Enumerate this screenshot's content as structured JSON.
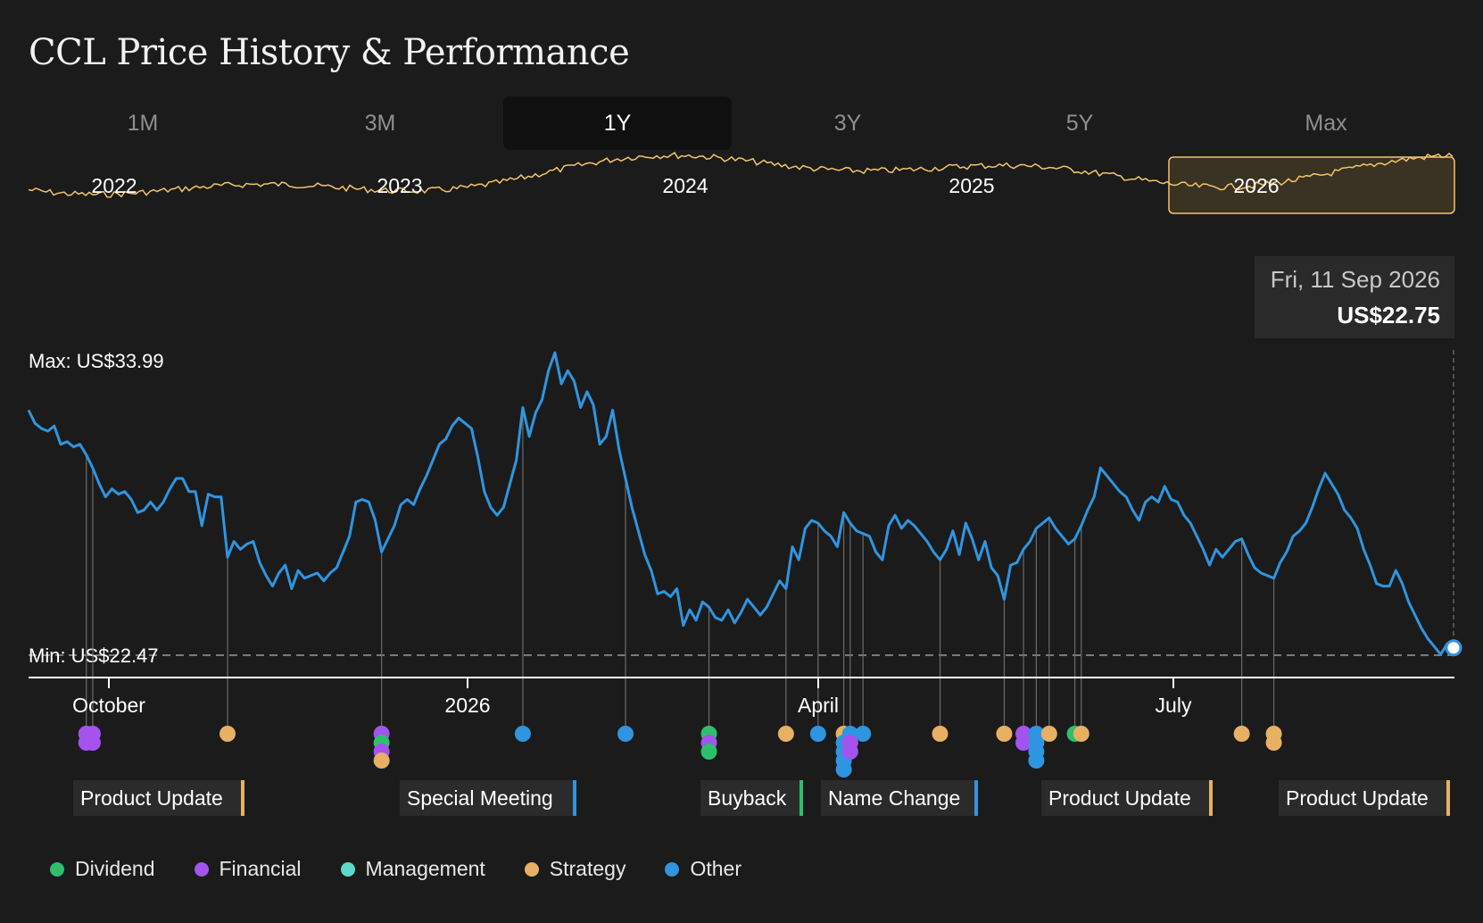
{
  "page": {
    "title": "CCL Price History & Performance"
  },
  "tabs": [
    {
      "label": "1M",
      "active": false
    },
    {
      "label": "3M",
      "active": false
    },
    {
      "label": "1Y",
      "active": true
    },
    {
      "label": "3Y",
      "active": false
    },
    {
      "label": "5Y",
      "active": false
    },
    {
      "label": "Max",
      "active": false
    }
  ],
  "colors": {
    "price_line": "#2f95e0",
    "overview_line": "#f3c56a",
    "dividend": "#2ebf6e",
    "financial": "#a553ee",
    "management": "#5fd8c7",
    "strategy": "#e7b063",
    "other": "#2f95e0"
  },
  "tooltip": {
    "date": "Fri, 11 Sep 2026",
    "price": "US$22.75"
  },
  "chart_data": [
    {
      "type": "line",
      "name": "overview",
      "x_labels": [
        "2022",
        "2023",
        "2024",
        "2025",
        "2026"
      ],
      "selected_range": "2026"
    },
    {
      "type": "line",
      "x_labels": [
        "October",
        "2026",
        "April",
        "July"
      ],
      "max_label": "Max: US$33.99",
      "min_label": "Min: US$22.47",
      "ylim": [
        22.47,
        33.99
      ],
      "values": [
        31.8,
        31.3,
        31.1,
        31.0,
        31.2,
        30.5,
        30.6,
        30.4,
        30.5,
        30.1,
        29.6,
        29.0,
        28.5,
        28.8,
        28.6,
        28.7,
        28.4,
        27.9,
        28.0,
        28.3,
        28.0,
        28.3,
        28.8,
        29.2,
        29.2,
        28.7,
        28.7,
        27.4,
        28.6,
        28.5,
        28.5,
        26.2,
        26.8,
        26.5,
        26.7,
        26.8,
        26.0,
        25.5,
        25.1,
        25.6,
        25.9,
        25.0,
        25.7,
        25.4,
        25.5,
        25.6,
        25.3,
        25.6,
        25.8,
        26.4,
        27.0,
        28.3,
        28.4,
        28.3,
        27.6,
        26.4,
        26.9,
        27.4,
        28.2,
        28.4,
        28.2,
        28.8,
        29.3,
        29.9,
        30.5,
        30.7,
        31.2,
        31.5,
        31.3,
        31.1,
        30.0,
        28.7,
        28.1,
        27.8,
        28.1,
        29.0,
        29.9,
        31.9,
        30.8,
        31.7,
        32.2,
        33.3,
        33.99,
        32.8,
        33.3,
        32.9,
        31.9,
        32.5,
        32.0,
        30.5,
        30.8,
        31.8,
        30.3,
        29.2,
        28.1,
        27.2,
        26.3,
        25.7,
        24.8,
        24.9,
        24.7,
        25.0,
        23.6,
        24.2,
        23.8,
        24.5,
        24.3,
        23.9,
        23.8,
        24.2,
        23.7,
        24.1,
        24.6,
        24.3,
        24.0,
        24.3,
        24.8,
        25.3,
        25.0,
        26.6,
        26.1,
        27.3,
        27.6,
        27.5,
        27.2,
        27.0,
        26.6,
        27.9,
        27.5,
        27.2,
        27.1,
        27.0,
        26.4,
        26.1,
        27.4,
        27.8,
        27.3,
        27.6,
        27.4,
        27.1,
        26.8,
        26.4,
        26.1,
        26.5,
        27.2,
        26.3,
        27.5,
        26.9,
        26.1,
        26.8,
        25.8,
        25.5,
        24.6,
        25.9,
        26.0,
        26.5,
        26.8,
        27.3,
        27.5,
        27.7,
        27.3,
        27.0,
        26.7,
        26.9,
        27.4,
        28.0,
        28.5,
        29.6,
        29.3,
        29.0,
        28.7,
        28.5,
        28.0,
        27.6,
        28.3,
        28.5,
        28.3,
        28.9,
        28.4,
        28.3,
        27.8,
        27.5,
        27.0,
        26.5,
        25.9,
        26.5,
        26.2,
        26.5,
        26.8,
        26.9,
        26.3,
        25.8,
        25.6,
        25.5,
        25.4,
        26.0,
        26.4,
        27.0,
        27.2,
        27.5,
        28.1,
        28.8,
        29.4,
        29.0,
        28.6,
        28.0,
        27.7,
        27.3,
        26.5,
        25.9,
        25.2,
        25.1,
        25.1,
        25.7,
        25.2,
        24.5,
        24.0,
        23.5,
        23.1,
        22.8,
        22.5,
        22.9,
        22.75
      ]
    }
  ],
  "events": {
    "labels": [
      {
        "text": "Product Update",
        "category": "strategy"
      },
      {
        "text": "Special Meeting",
        "category": "other"
      },
      {
        "text": "Buyback",
        "category": "dividend"
      },
      {
        "text": "Name Change",
        "category": "other"
      },
      {
        "text": "Product Update",
        "category": "strategy"
      },
      {
        "text": "Product Update",
        "category": "strategy"
      }
    ],
    "markers": [
      {
        "category": "financial",
        "x_index": 9
      },
      {
        "category": "financial",
        "x_index": 9
      },
      {
        "category": "financial",
        "x_index": 10
      },
      {
        "category": "financial",
        "x_index": 10
      },
      {
        "category": "strategy",
        "x_index": 31
      },
      {
        "category": "financial",
        "x_index": 55
      },
      {
        "category": "dividend",
        "x_index": 55
      },
      {
        "category": "financial",
        "x_index": 55
      },
      {
        "category": "strategy",
        "x_index": 55
      },
      {
        "category": "other",
        "x_index": 77
      },
      {
        "category": "other",
        "x_index": 93
      },
      {
        "category": "dividend",
        "x_index": 106
      },
      {
        "category": "financial",
        "x_index": 106
      },
      {
        "category": "dividend",
        "x_index": 106
      },
      {
        "category": "strategy",
        "x_index": 118
      },
      {
        "category": "other",
        "x_index": 123
      },
      {
        "category": "strategy",
        "x_index": 127
      },
      {
        "category": "other",
        "x_index": 127
      },
      {
        "category": "other",
        "x_index": 127
      },
      {
        "category": "other",
        "x_index": 127
      },
      {
        "category": "other",
        "x_index": 127
      },
      {
        "category": "other",
        "x_index": 128
      },
      {
        "category": "financial",
        "x_index": 128
      },
      {
        "category": "financial",
        "x_index": 128
      },
      {
        "category": "other",
        "x_index": 130
      },
      {
        "category": "strategy",
        "x_index": 142
      },
      {
        "category": "strategy",
        "x_index": 152
      },
      {
        "category": "financial",
        "x_index": 155
      },
      {
        "category": "financial",
        "x_index": 155
      },
      {
        "category": "other",
        "x_index": 157
      },
      {
        "category": "other",
        "x_index": 157
      },
      {
        "category": "other",
        "x_index": 157
      },
      {
        "category": "other",
        "x_index": 157
      },
      {
        "category": "strategy",
        "x_index": 159
      },
      {
        "category": "dividend",
        "x_index": 163
      },
      {
        "category": "strategy",
        "x_index": 164
      },
      {
        "category": "strategy",
        "x_index": 189
      },
      {
        "category": "strategy",
        "x_index": 194
      },
      {
        "category": "strategy",
        "x_index": 194
      }
    ]
  },
  "legend": [
    {
      "label": "Dividend",
      "category": "dividend"
    },
    {
      "label": "Financial",
      "category": "financial"
    },
    {
      "label": "Management",
      "category": "management"
    },
    {
      "label": "Strategy",
      "category": "strategy"
    },
    {
      "label": "Other",
      "category": "other"
    }
  ]
}
